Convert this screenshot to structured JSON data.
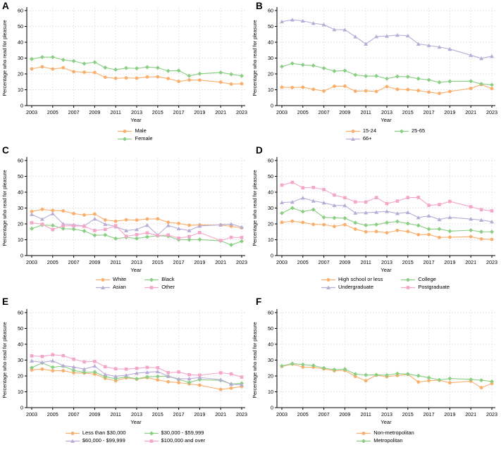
{
  "figure": {
    "ylabel": "Percentage who read for pleasure",
    "xlabel": "Year",
    "ylim": [
      0,
      60
    ],
    "yticks": [
      0,
      10,
      20,
      30,
      40,
      50,
      60
    ],
    "xticks": [
      2003,
      2005,
      2007,
      2009,
      2011,
      2013,
      2015,
      2017,
      2019,
      2021,
      2023
    ],
    "grid": "dashed-both-axes",
    "background": "#ffffff",
    "axis_color": "#000000",
    "grid_color": "#e5e5e5",
    "palette": {
      "orange": {
        "color": "#FAAE6B",
        "marker": "circle"
      },
      "green": {
        "color": "#89CE83",
        "marker": "diamond"
      },
      "purple": {
        "color": "#B8ACD6",
        "marker": "triangle"
      },
      "pink": {
        "color": "#F4A6C8",
        "marker": "square"
      }
    }
  },
  "chart_data": [
    {
      "id": "A",
      "label": "A",
      "type": "line",
      "legend_cols": 1,
      "x": [
        2003,
        2004,
        2005,
        2006,
        2007,
        2008,
        2009,
        2010,
        2011,
        2012,
        2013,
        2014,
        2015,
        2016,
        2017,
        2018,
        2019,
        2021,
        2022,
        2023
      ],
      "series": [
        {
          "name": "Male",
          "role": "orange",
          "values": [
            23.2,
            24.5,
            23.1,
            23.9,
            21.4,
            21.1,
            20.9,
            17.9,
            17.2,
            17.5,
            17.3,
            18.1,
            18.2,
            17.1,
            15.3,
            16.2,
            16.1,
            14.8,
            13.6,
            13.8
          ]
        },
        {
          "name": "Female",
          "role": "green",
          "values": [
            29.4,
            30.6,
            30.6,
            28.9,
            28.1,
            26.5,
            27.4,
            24.0,
            22.7,
            23.7,
            23.5,
            24.3,
            23.9,
            21.9,
            22.1,
            18.8,
            20.1,
            20.9,
            19.8,
            18.8
          ]
        }
      ]
    },
    {
      "id": "B",
      "label": "B",
      "type": "line",
      "legend_cols": 2,
      "x": [
        2003,
        2004,
        2005,
        2006,
        2007,
        2008,
        2009,
        2010,
        2011,
        2012,
        2013,
        2014,
        2015,
        2016,
        2017,
        2018,
        2019,
        2021,
        2022,
        2023
      ],
      "series": [
        {
          "name": "15-24",
          "role": "orange",
          "values": [
            11.6,
            11.4,
            11.6,
            10.3,
            9.2,
            12.2,
            12.3,
            9.1,
            9.3,
            8.9,
            12.0,
            10.3,
            10.1,
            9.5,
            8.5,
            7.7,
            8.9,
            10.9,
            13.3,
            10.7
          ]
        },
        {
          "name": "25-65",
          "role": "green",
          "values": [
            24.6,
            26.6,
            25.7,
            25.3,
            23.6,
            21.8,
            22.1,
            19.4,
            18.6,
            18.7,
            17.0,
            18.4,
            18.2,
            17.0,
            16.2,
            14.7,
            15.3,
            15.4,
            13.7,
            13.1
          ]
        },
        {
          "name": "66+",
          "role": "purple",
          "values": [
            53.0,
            54.2,
            53.5,
            52.0,
            51.1,
            48.0,
            47.9,
            43.5,
            38.9,
            43.6,
            43.9,
            44.5,
            44.1,
            38.9,
            38.0,
            37.0,
            35.7,
            31.8,
            29.8,
            31.2
          ]
        }
      ]
    },
    {
      "id": "C",
      "label": "C",
      "type": "line",
      "legend_cols": 2,
      "x": [
        2003,
        2004,
        2005,
        2006,
        2007,
        2008,
        2009,
        2010,
        2011,
        2012,
        2013,
        2014,
        2015,
        2016,
        2017,
        2018,
        2019,
        2021,
        2022,
        2023
      ],
      "series": [
        {
          "name": "White",
          "role": "orange",
          "values": [
            27.8,
            29.2,
            28.5,
            28.2,
            26.5,
            25.6,
            26.2,
            22.5,
            21.7,
            22.6,
            22.4,
            23.1,
            23.2,
            21.0,
            20.3,
            19.1,
            19.3,
            19.3,
            18.5,
            17.5
          ]
        },
        {
          "name": "Black",
          "role": "green",
          "values": [
            17.0,
            19.3,
            19.0,
            17.0,
            16.7,
            15.5,
            12.8,
            13.0,
            10.7,
            11.5,
            10.8,
            11.8,
            12.5,
            12.2,
            10.0,
            10.0,
            10.1,
            9.3,
            6.7,
            9.0
          ]
        },
        {
          "name": "Asian",
          "role": "purple",
          "values": [
            26.0,
            23.0,
            26.5,
            20.0,
            19.3,
            18.7,
            23.2,
            19.8,
            18.3,
            15.8,
            16.5,
            19.2,
            13.0,
            19.0,
            17.0,
            15.8,
            18.7,
            19.4,
            19.9,
            18.0
          ]
        },
        {
          "name": "Other",
          "role": "pink",
          "values": [
            20.7,
            19.8,
            16.4,
            18.8,
            18.8,
            18.5,
            15.8,
            16.5,
            18.8,
            12.2,
            13.2,
            14.3,
            12.7,
            13.0,
            11.0,
            12.0,
            14.5,
            9.5,
            11.5,
            11.4
          ]
        }
      ]
    },
    {
      "id": "D",
      "label": "D",
      "type": "line",
      "legend_cols": 2,
      "x": [
        2003,
        2004,
        2005,
        2006,
        2007,
        2008,
        2009,
        2010,
        2011,
        2012,
        2013,
        2014,
        2015,
        2016,
        2017,
        2018,
        2019,
        2021,
        2022,
        2023
      ],
      "series": [
        {
          "name": "High school or less",
          "role": "orange",
          "values": [
            21.0,
            21.7,
            20.9,
            19.7,
            19.5,
            18.4,
            19.5,
            16.7,
            15.0,
            15.2,
            14.4,
            15.9,
            15.2,
            13.2,
            13.3,
            11.4,
            11.6,
            11.9,
            10.5,
            10.2
          ]
        },
        {
          "name": "College",
          "role": "green",
          "values": [
            26.8,
            30.0,
            27.8,
            29.0,
            24.1,
            23.8,
            23.6,
            20.7,
            19.1,
            19.6,
            20.8,
            21.5,
            20.2,
            19.0,
            16.7,
            16.8,
            15.4,
            16.0,
            15.0,
            15.0
          ]
        },
        {
          "name": "Undergraduate",
          "role": "purple",
          "values": [
            33.5,
            33.8,
            36.4,
            34.5,
            33.3,
            31.7,
            31.6,
            26.9,
            27.1,
            27.4,
            27.9,
            26.6,
            27.3,
            24.0,
            25.1,
            22.8,
            24.1,
            23.1,
            22.4,
            21.4
          ]
        },
        {
          "name": "Postgraduate",
          "role": "pink",
          "values": [
            44.5,
            46.2,
            42.8,
            43.0,
            41.7,
            38.2,
            36.5,
            33.9,
            33.8,
            36.6,
            32.8,
            34.4,
            36.6,
            36.7,
            31.7,
            32.2,
            34.2,
            30.8,
            29.0,
            28.2
          ]
        }
      ]
    },
    {
      "id": "E",
      "label": "E",
      "type": "line",
      "legend_cols": 2,
      "x": [
        2003,
        2004,
        2005,
        2006,
        2007,
        2008,
        2009,
        2010,
        2011,
        2012,
        2013,
        2014,
        2015,
        2016,
        2017,
        2018,
        2019,
        2021,
        2022,
        2023
      ],
      "series": [
        {
          "name": "Less than $30,000",
          "role": "orange",
          "values": [
            23.8,
            24.3,
            23.3,
            23.3,
            22.0,
            21.8,
            21.2,
            18.5,
            16.9,
            18.8,
            18.0,
            18.9,
            17.5,
            16.3,
            15.8,
            15.0,
            14.2,
            11.5,
            12.3,
            13.3
          ]
        },
        {
          "name": "$30,000 - $59,999",
          "role": "green",
          "values": [
            25.2,
            28.2,
            25.5,
            26.2,
            23.5,
            22.3,
            22.5,
            19.5,
            18.3,
            19.4,
            18.2,
            19.4,
            19.7,
            19.8,
            17.8,
            15.9,
            17.7,
            17.2,
            14.9,
            15.3
          ]
        },
        {
          "name": "$60,000 - $99,999",
          "role": "purple",
          "values": [
            29.5,
            28.6,
            29.6,
            26.5,
            25.7,
            24.3,
            26.3,
            21.0,
            19.8,
            20.5,
            21.8,
            22.3,
            22.8,
            19.8,
            18.2,
            18.3,
            19.0,
            17.7,
            14.8,
            14.5
          ]
        },
        {
          "name": "$100,000 and over",
          "role": "pink",
          "values": [
            32.7,
            32.3,
            33.4,
            32.8,
            30.6,
            28.9,
            29.2,
            25.8,
            24.5,
            24.3,
            24.8,
            25.4,
            25.2,
            22.1,
            22.5,
            20.8,
            20.5,
            22.0,
            21.3,
            19.3
          ]
        }
      ]
    },
    {
      "id": "F",
      "label": "F",
      "type": "line",
      "legend_cols": 1,
      "x": [
        2003,
        2004,
        2005,
        2006,
        2007,
        2008,
        2009,
        2010,
        2011,
        2012,
        2013,
        2014,
        2015,
        2016,
        2017,
        2018,
        2019,
        2021,
        2022,
        2023
      ],
      "series": [
        {
          "name": "Non-metropolitan",
          "role": "orange",
          "values": [
            26.0,
            27.5,
            25.6,
            25.5,
            24.4,
            23.3,
            23.5,
            19.7,
            17.0,
            20.5,
            19.5,
            20.3,
            21.0,
            16.2,
            17.0,
            17.3,
            15.7,
            16.7,
            12.6,
            15.2
          ]
        },
        {
          "name": "Metropolitan",
          "role": "green",
          "values": [
            26.3,
            27.8,
            27.2,
            26.6,
            25.0,
            24.0,
            24.3,
            21.2,
            20.6,
            20.7,
            20.5,
            21.5,
            21.2,
            20.1,
            18.9,
            17.5,
            18.4,
            17.8,
            17.3,
            16.5
          ]
        }
      ]
    }
  ]
}
